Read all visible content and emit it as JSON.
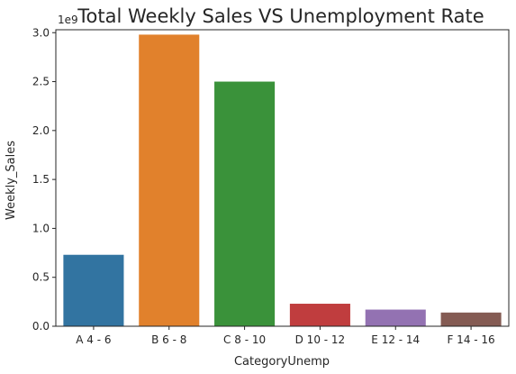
{
  "chart_data": {
    "type": "bar",
    "title": "Total Weekly Sales VS Unemployment Rate",
    "xlabel": "CategoryUnemp",
    "ylabel": "Weekly_Sales",
    "y_offset_label": "1e9",
    "categories": [
      "A 4 - 6",
      "B 6 - 8",
      "C 8 - 10",
      "D 10 - 12",
      "E 12 - 14",
      "F 14 - 16"
    ],
    "values": [
      0.73,
      2.98,
      2.5,
      0.23,
      0.17,
      0.14
    ],
    "value_scale": 1000000000.0,
    "colors": [
      "#3274a1",
      "#e1812c",
      "#3a923a",
      "#c03d3e",
      "#9372b2",
      "#845b53"
    ],
    "ylim": [
      0,
      3.03
    ],
    "yticks": [
      "0.0",
      "0.5",
      "1.0",
      "1.5",
      "2.0",
      "2.5",
      "3.0"
    ],
    "grid": false,
    "legend": "none"
  }
}
